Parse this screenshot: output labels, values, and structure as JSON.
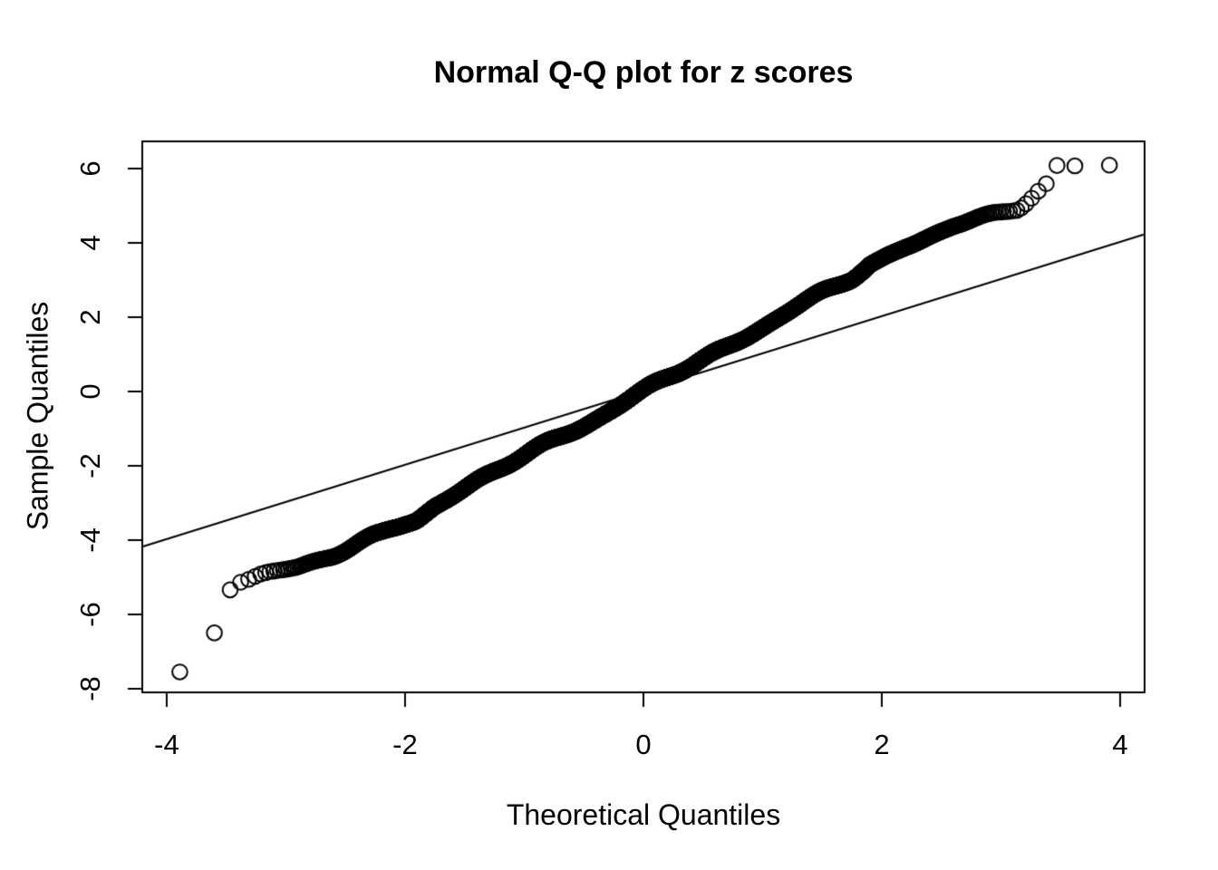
{
  "chart_data": {
    "type": "scatter",
    "variant": "normal-qq-plot",
    "title": "Normal Q-Q plot for z scores",
    "xlabel": "Theoretical Quantiles",
    "ylabel": "Sample Quantiles",
    "xlim": [
      -4.205,
      4.205
    ],
    "ylim": [
      -8.1,
      6.73
    ],
    "x_ticks": [
      -4,
      -2,
      0,
      2,
      4
    ],
    "y_ticks": [
      6,
      4,
      2,
      0,
      -2,
      -4,
      -6,
      -8
    ],
    "grid": false,
    "legend": null,
    "marker": "open-circle",
    "colors": {
      "points": "#000000",
      "reference_line": "#000000",
      "axis": "#000000",
      "text": "#000000",
      "background": "#ffffff"
    },
    "n_points": 10000,
    "reference_line": {
      "x1": -4.205,
      "y1": -4.18,
      "x2": 4.205,
      "y2": 4.23
    },
    "band_x_range": [
      -3.5,
      3.41
    ],
    "quantile_curve_anchors": [
      [
        -3.5,
        -5.4
      ],
      [
        -3.47,
        -5.36
      ],
      [
        -3.38,
        -5.12
      ],
      [
        -3.3,
        -5.03
      ],
      [
        -3.22,
        -4.92
      ],
      [
        -3.15,
        -4.85
      ],
      [
        -3.05,
        -4.78
      ],
      [
        -2.9,
        -4.7
      ],
      [
        -2.75,
        -4.55
      ],
      [
        -2.6,
        -4.4
      ],
      [
        -2.4,
        -4.12
      ],
      [
        -2.2,
        -3.88
      ],
      [
        -2.0,
        -3.55
      ],
      [
        -1.9,
        -3.42
      ],
      [
        -1.75,
        -3.05
      ],
      [
        -1.6,
        -2.78
      ],
      [
        -1.4,
        -2.42
      ],
      [
        -1.2,
        -2.08
      ],
      [
        -1.0,
        -1.74
      ],
      [
        -0.8,
        -1.4
      ],
      [
        -0.6,
        -1.05
      ],
      [
        -0.4,
        -0.7
      ],
      [
        -0.2,
        -0.36
      ],
      [
        0.0,
        -0.01
      ],
      [
        0.2,
        0.35
      ],
      [
        0.4,
        0.7
      ],
      [
        0.6,
        1.05
      ],
      [
        0.8,
        1.4
      ],
      [
        1.0,
        1.75
      ],
      [
        1.2,
        2.1
      ],
      [
        1.4,
        2.44
      ],
      [
        1.6,
        2.8
      ],
      [
        1.75,
        3.08
      ],
      [
        1.9,
        3.45
      ],
      [
        2.0,
        3.58
      ],
      [
        2.2,
        3.9
      ],
      [
        2.4,
        4.16
      ],
      [
        2.6,
        4.42
      ],
      [
        2.75,
        4.56
      ],
      [
        2.9,
        4.71
      ],
      [
        3.0,
        4.82
      ],
      [
        3.15,
        5.0
      ],
      [
        3.25,
        5.28
      ],
      [
        3.33,
        5.5
      ],
      [
        3.41,
        5.66
      ]
    ],
    "outlier_points": {
      "lower": [
        [
          -3.89,
          -7.55
        ],
        [
          -3.6,
          -6.5
        ]
      ],
      "upper": [
        [
          3.47,
          6.08
        ],
        [
          3.62,
          6.07
        ],
        [
          3.91,
          6.09
        ]
      ]
    }
  }
}
